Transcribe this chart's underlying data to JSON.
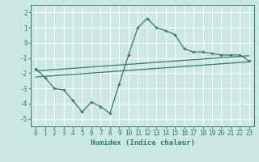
{
  "xlabel": "Humidex (Indice chaleur)",
  "ylabel": "",
  "background_color": "#cce8e4",
  "grid_color": "#ffffff",
  "line_color": "#2e7d6e",
  "xlim": [
    -0.5,
    23.5
  ],
  "ylim": [
    -5.5,
    2.5
  ],
  "yticks": [
    -5,
    -4,
    -3,
    -2,
    -1,
    0,
    1,
    2
  ],
  "xticks": [
    0,
    1,
    2,
    3,
    4,
    5,
    6,
    7,
    8,
    9,
    10,
    11,
    12,
    13,
    14,
    15,
    16,
    17,
    18,
    19,
    20,
    21,
    22,
    23
  ],
  "main_x": [
    0,
    1,
    2,
    3,
    4,
    5,
    6,
    7,
    8,
    9,
    10,
    11,
    12,
    13,
    14,
    15,
    16,
    17,
    18,
    19,
    20,
    21,
    22,
    23
  ],
  "main_y": [
    -1.7,
    -2.3,
    -3.0,
    -3.1,
    -3.8,
    -4.55,
    -3.9,
    -4.2,
    -4.65,
    -2.7,
    -0.8,
    1.0,
    1.6,
    1.0,
    0.8,
    0.55,
    -0.4,
    -0.6,
    -0.6,
    -0.7,
    -0.8,
    -0.8,
    -0.8,
    -1.2
  ],
  "line1_x": [
    0,
    23
  ],
  "line1_y": [
    -1.85,
    -0.85
  ],
  "line2_x": [
    0,
    23
  ],
  "line2_y": [
    -2.25,
    -1.25
  ],
  "xlabel_fontsize": 6.5,
  "tick_fontsize": 5.5
}
